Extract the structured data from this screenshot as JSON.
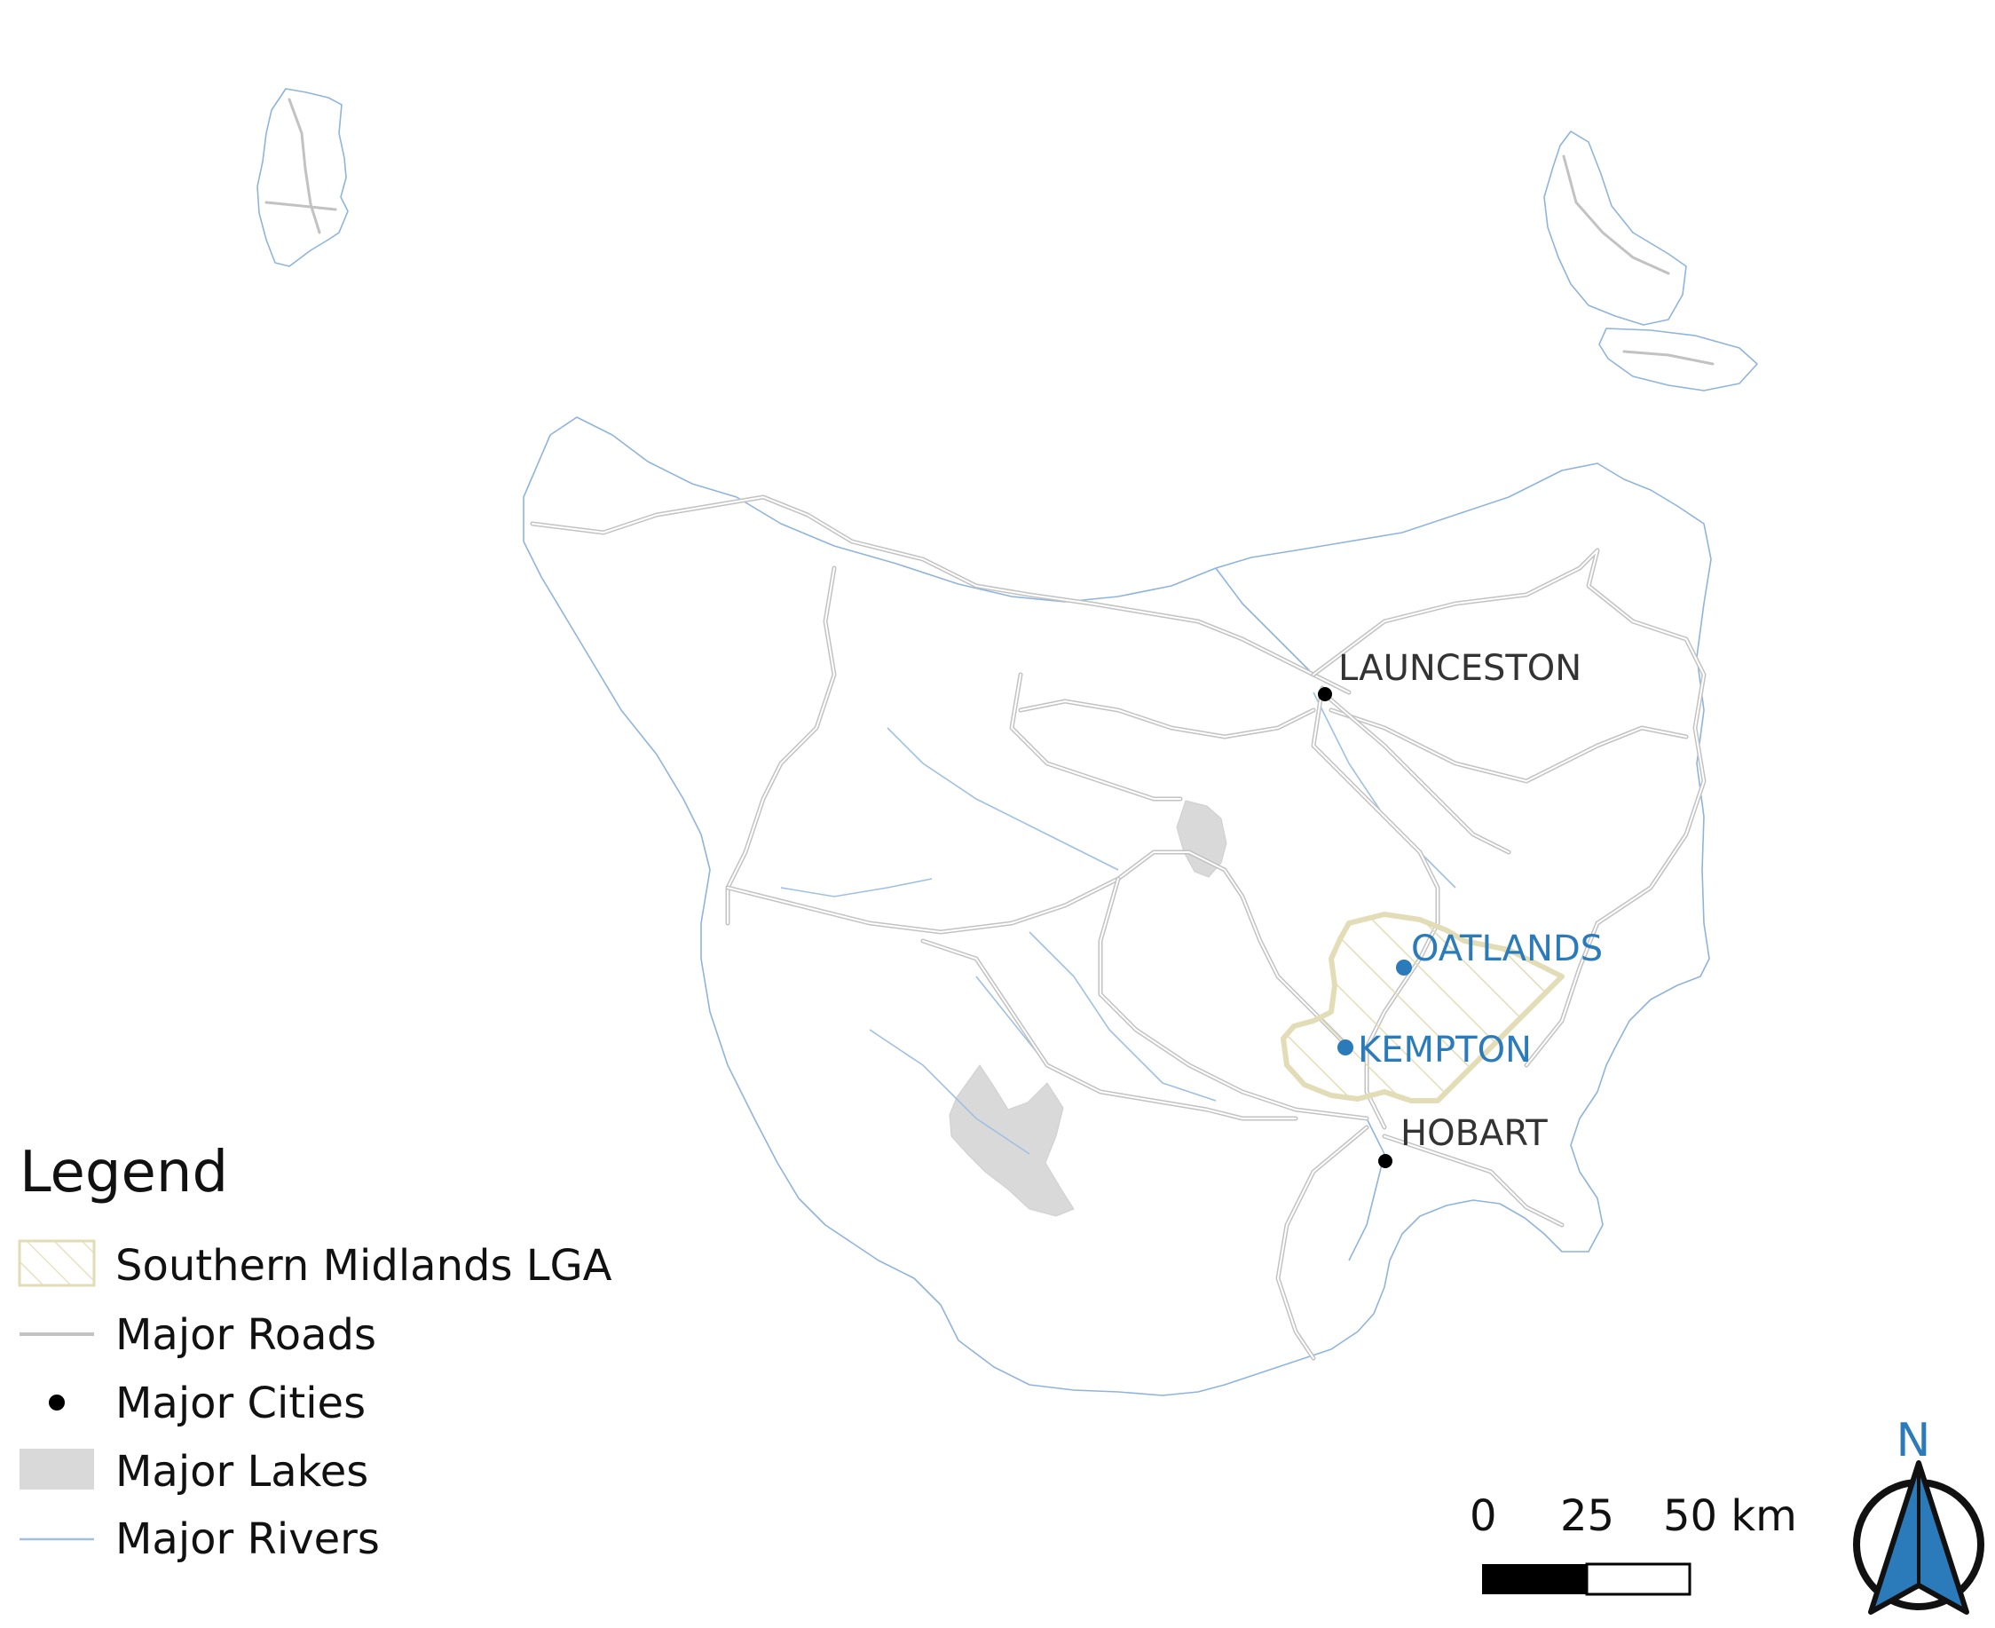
{
  "colors": {
    "town": "#2b7bba",
    "city": "#000000",
    "road": "#c2c2c2",
    "river": "#9fc0e2",
    "lake": "#d9d9d9",
    "lga_stroke": "#e2ddb6",
    "north_arrow": "#2b7bba"
  },
  "places": {
    "cities": [
      {
        "name": "LAUNCESTON"
      },
      {
        "name": "HOBART"
      }
    ],
    "towns": [
      {
        "name": "OATLANDS"
      },
      {
        "name": "KEMPTON"
      }
    ]
  },
  "legend": {
    "title": "Legend",
    "items": [
      {
        "label": "Southern Midlands LGA",
        "symbol": "hatched-polygon"
      },
      {
        "label": "Major Roads",
        "symbol": "grey-line"
      },
      {
        "label": "Major Cities",
        "symbol": "black-dot"
      },
      {
        "label": "Major Lakes",
        "symbol": "grey-fill"
      },
      {
        "label": "Major Rivers",
        "symbol": "blue-line"
      }
    ]
  },
  "scale_bar": {
    "labels": [
      "0",
      "25",
      "50 km"
    ]
  },
  "north_arrow": {
    "label": "N",
    "icon": "north-arrow-icon"
  }
}
